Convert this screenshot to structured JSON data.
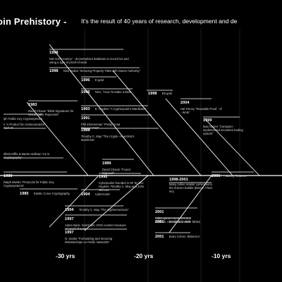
{
  "header": {
    "title": "oin Prehistory -",
    "subtitle": "It's the result of 40 years of research, development and de"
  },
  "axis_labels": [
    "-30 yrs",
    "-20 yrs",
    "-10 yrs"
  ],
  "events": [
    {
      "year": "1998",
      "text": "Wei Dai’b-money” - decentralized database to record txs and using a type of proof-of-work"
    },
    {
      "year": "1998",
      "text": "Nick Szabo “Securing Property Titles with Owner Authority”"
    },
    {
      "year": "1996",
      "text": "E-gold"
    },
    {
      "year": "1996",
      "text": "NSA, “How To Make a Mint”"
    },
    {
      "year": "1998",
      "text": "Bit gold"
    },
    {
      "year": "1993",
      "text": "E. Hughes “A Cypherpunk’s Manifesto”"
    },
    {
      "year": "1991",
      "text": "Phil Zimmerman “Pretty Good Privacy” PGP"
    },
    {
      "year": "1988",
      "text": "Timothy C. May “The Crypto -Anarchist’s Manifesto”"
    },
    {
      "year": "1983",
      "text": "David Chaum “Blind Signatures for Untraceable Payments”"
    },
    {
      "year": "",
      "text": "lph Public Key Cryptosystems"
    },
    {
      "year": "",
      "text": "s “A Product for communication” TCP-IP"
    },
    {
      "year": "2004",
      "text": "Hal Finney “Reusable Proof - of - Work”"
    },
    {
      "year": "1999",
      "text": "Max Ketzer “Computer - implemented securities trading system”"
    },
    {
      "year": "",
      "text": "itfield Diffie & Martin Hellman “ns in Cryptography”"
    },
    {
      "year": "1980",
      "text": "Ralph Merkle “Protocols for Public Key Cryptosystems”"
    },
    {
      "year": "1985",
      "text": "Elastic Curve Cryptography"
    },
    {
      "year": "1989",
      "text": "David Chaum “Found Digicash”"
    },
    {
      "year": "1992",
      "text": "Cyberpunks founded in SF by Eric Hughes, Timothy C. May and John Gilmore"
    },
    {
      "year": "1994",
      "text": "CyberCash"
    },
    {
      "year": "1994",
      "text": "Timothy C. May “The Cyphernomicon”"
    },
    {
      "year": "1997",
      "text": "Adam Back, hashCash, DOS counter-measure w/ proof-of-work"
    },
    {
      "year": "1997",
      "text": "N. Szabo “Formalizing and Securing Relationships on Public Networks”"
    },
    {
      "year": "1998-2001",
      "text": "Many online retailer currencies in the dotcom bubble (Beenz, Flooz etc)"
    },
    {
      "year": "2001",
      "text": "Video game currencies and markets: rare starts in 2001"
    },
    {
      "year": "2006",
      "text": "Liberty Reserve"
    },
    {
      "year": "2001",
      "text": "Distributed Hash Tables"
    },
    {
      "year": "2001",
      "text": "Bram Cohen, Bittorrent"
    }
  ]
}
